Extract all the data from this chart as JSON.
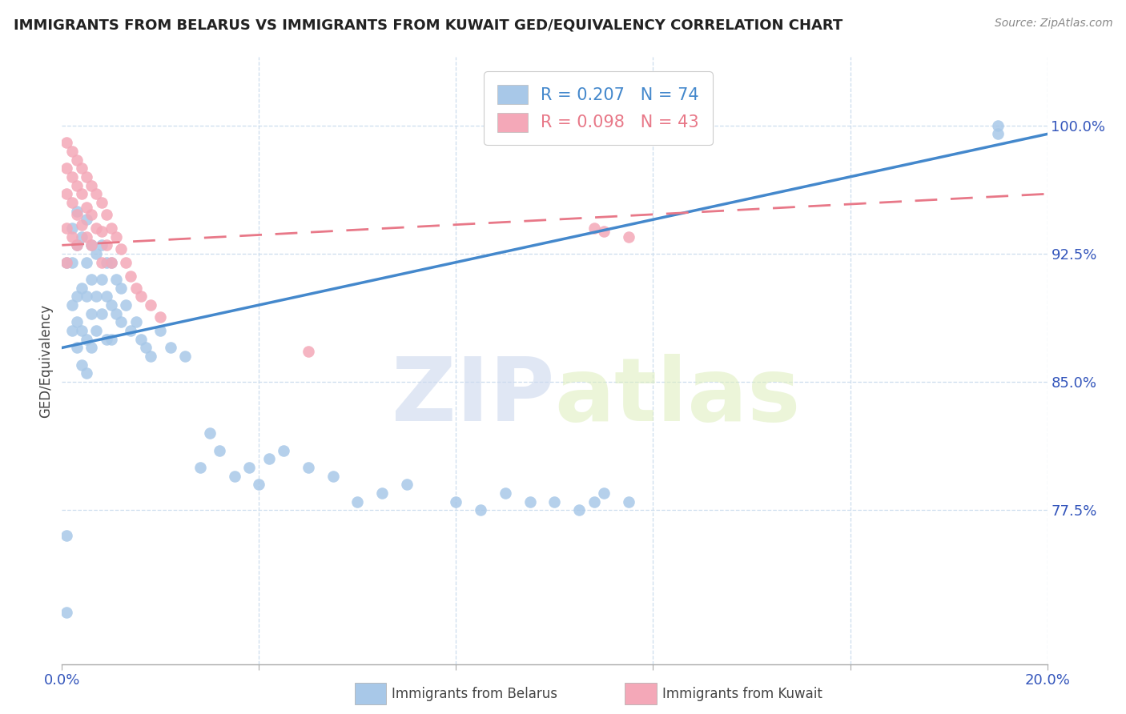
{
  "title": "IMMIGRANTS FROM BELARUS VS IMMIGRANTS FROM KUWAIT GED/EQUIVALENCY CORRELATION CHART",
  "source": "Source: ZipAtlas.com",
  "ylabel": "GED/Equivalency",
  "yticks": [
    0.775,
    0.85,
    0.925,
    1.0
  ],
  "ytick_labels": [
    "77.5%",
    "85.0%",
    "92.5%",
    "100.0%"
  ],
  "xlim": [
    0.0,
    0.2
  ],
  "ylim": [
    0.685,
    1.04
  ],
  "legend_label_belarus": "R = 0.207   N = 74",
  "legend_label_kuwait": "R = 0.098   N = 43",
  "belarus_color": "#a8c8e8",
  "kuwait_color": "#f4a8b8",
  "trendline_belarus_color": "#4488cc",
  "trendline_kuwait_color": "#e87888",
  "watermark_text": "ZIPatlas",
  "bottom_legend_belarus": "Immigrants from Belarus",
  "bottom_legend_kuwait": "Immigrants from Kuwait",
  "belarus_x": [
    0.001,
    0.001,
    0.001,
    0.002,
    0.002,
    0.002,
    0.002,
    0.003,
    0.003,
    0.003,
    0.003,
    0.003,
    0.004,
    0.004,
    0.004,
    0.004,
    0.005,
    0.005,
    0.005,
    0.005,
    0.005,
    0.006,
    0.006,
    0.006,
    0.006,
    0.007,
    0.007,
    0.007,
    0.008,
    0.008,
    0.008,
    0.009,
    0.009,
    0.009,
    0.01,
    0.01,
    0.01,
    0.011,
    0.011,
    0.012,
    0.012,
    0.013,
    0.014,
    0.015,
    0.016,
    0.017,
    0.018,
    0.02,
    0.022,
    0.025,
    0.028,
    0.03,
    0.032,
    0.035,
    0.038,
    0.04,
    0.042,
    0.045,
    0.05,
    0.055,
    0.06,
    0.065,
    0.07,
    0.08,
    0.085,
    0.09,
    0.095,
    0.1,
    0.105,
    0.108,
    0.11,
    0.115,
    0.19,
    0.19
  ],
  "belarus_y": [
    0.715,
    0.76,
    0.92,
    0.88,
    0.895,
    0.92,
    0.94,
    0.87,
    0.885,
    0.9,
    0.93,
    0.95,
    0.86,
    0.88,
    0.905,
    0.935,
    0.855,
    0.875,
    0.9,
    0.92,
    0.945,
    0.87,
    0.89,
    0.91,
    0.93,
    0.88,
    0.9,
    0.925,
    0.89,
    0.91,
    0.93,
    0.875,
    0.9,
    0.92,
    0.875,
    0.895,
    0.92,
    0.89,
    0.91,
    0.885,
    0.905,
    0.895,
    0.88,
    0.885,
    0.875,
    0.87,
    0.865,
    0.88,
    0.87,
    0.865,
    0.8,
    0.82,
    0.81,
    0.795,
    0.8,
    0.79,
    0.805,
    0.81,
    0.8,
    0.795,
    0.78,
    0.785,
    0.79,
    0.78,
    0.775,
    0.785,
    0.78,
    0.78,
    0.775,
    0.78,
    0.785,
    0.78,
    1.0,
    0.995
  ],
  "kuwait_x": [
    0.001,
    0.001,
    0.001,
    0.001,
    0.001,
    0.002,
    0.002,
    0.002,
    0.002,
    0.003,
    0.003,
    0.003,
    0.003,
    0.004,
    0.004,
    0.004,
    0.005,
    0.005,
    0.005,
    0.006,
    0.006,
    0.006,
    0.007,
    0.007,
    0.008,
    0.008,
    0.008,
    0.009,
    0.009,
    0.01,
    0.01,
    0.011,
    0.012,
    0.013,
    0.014,
    0.015,
    0.016,
    0.018,
    0.02,
    0.05,
    0.108,
    0.11,
    0.115
  ],
  "kuwait_y": [
    0.99,
    0.975,
    0.96,
    0.94,
    0.92,
    0.985,
    0.97,
    0.955,
    0.935,
    0.98,
    0.965,
    0.948,
    0.93,
    0.975,
    0.96,
    0.942,
    0.97,
    0.952,
    0.935,
    0.965,
    0.948,
    0.93,
    0.96,
    0.94,
    0.955,
    0.938,
    0.92,
    0.948,
    0.93,
    0.94,
    0.92,
    0.935,
    0.928,
    0.92,
    0.912,
    0.905,
    0.9,
    0.895,
    0.888,
    0.868,
    0.94,
    0.938,
    0.935
  ],
  "belarus_trend_x": [
    0.0,
    0.2
  ],
  "belarus_trend_y": [
    0.87,
    0.995
  ],
  "kuwait_trend_x": [
    0.0,
    0.2
  ],
  "kuwait_trend_y": [
    0.93,
    0.96
  ]
}
